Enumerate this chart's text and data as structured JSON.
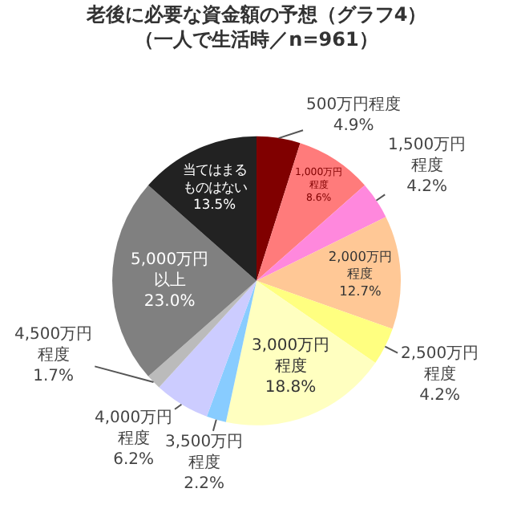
{
  "chart_data": {
    "type": "pie",
    "title": "老後に必要な資金額の予想（グラフ4）（一人で生活時／n=961）",
    "categories": [
      "500万円程度",
      "1,000万円程度",
      "1,500万円程度",
      "2,000万円程度",
      "2,500万円程度",
      "3,000万円程度",
      "3,500万円程度",
      "4,000万円程度",
      "4,500万円程度",
      "5,000万円以上",
      "当てはまるものはない"
    ],
    "values": [
      4.9,
      8.6,
      4.2,
      12.7,
      4.2,
      18.8,
      2.2,
      6.2,
      1.7,
      23.0,
      13.5
    ],
    "value_labels": [
      "4.9%",
      "8.6%",
      "4.2%",
      "12.7%",
      "4.2%",
      "18.8%",
      "2.2%",
      "6.2%",
      "1.7%",
      "23.0%",
      "13.5%"
    ],
    "colors": [
      "#800000",
      "#ff7b7b",
      "#ff88dd",
      "#ffc896",
      "#ffff80",
      "#ffffc0",
      "#88ccff",
      "#ccccff",
      "#bbbbbb",
      "#808080",
      "#222222"
    ],
    "legend": false
  }
}
